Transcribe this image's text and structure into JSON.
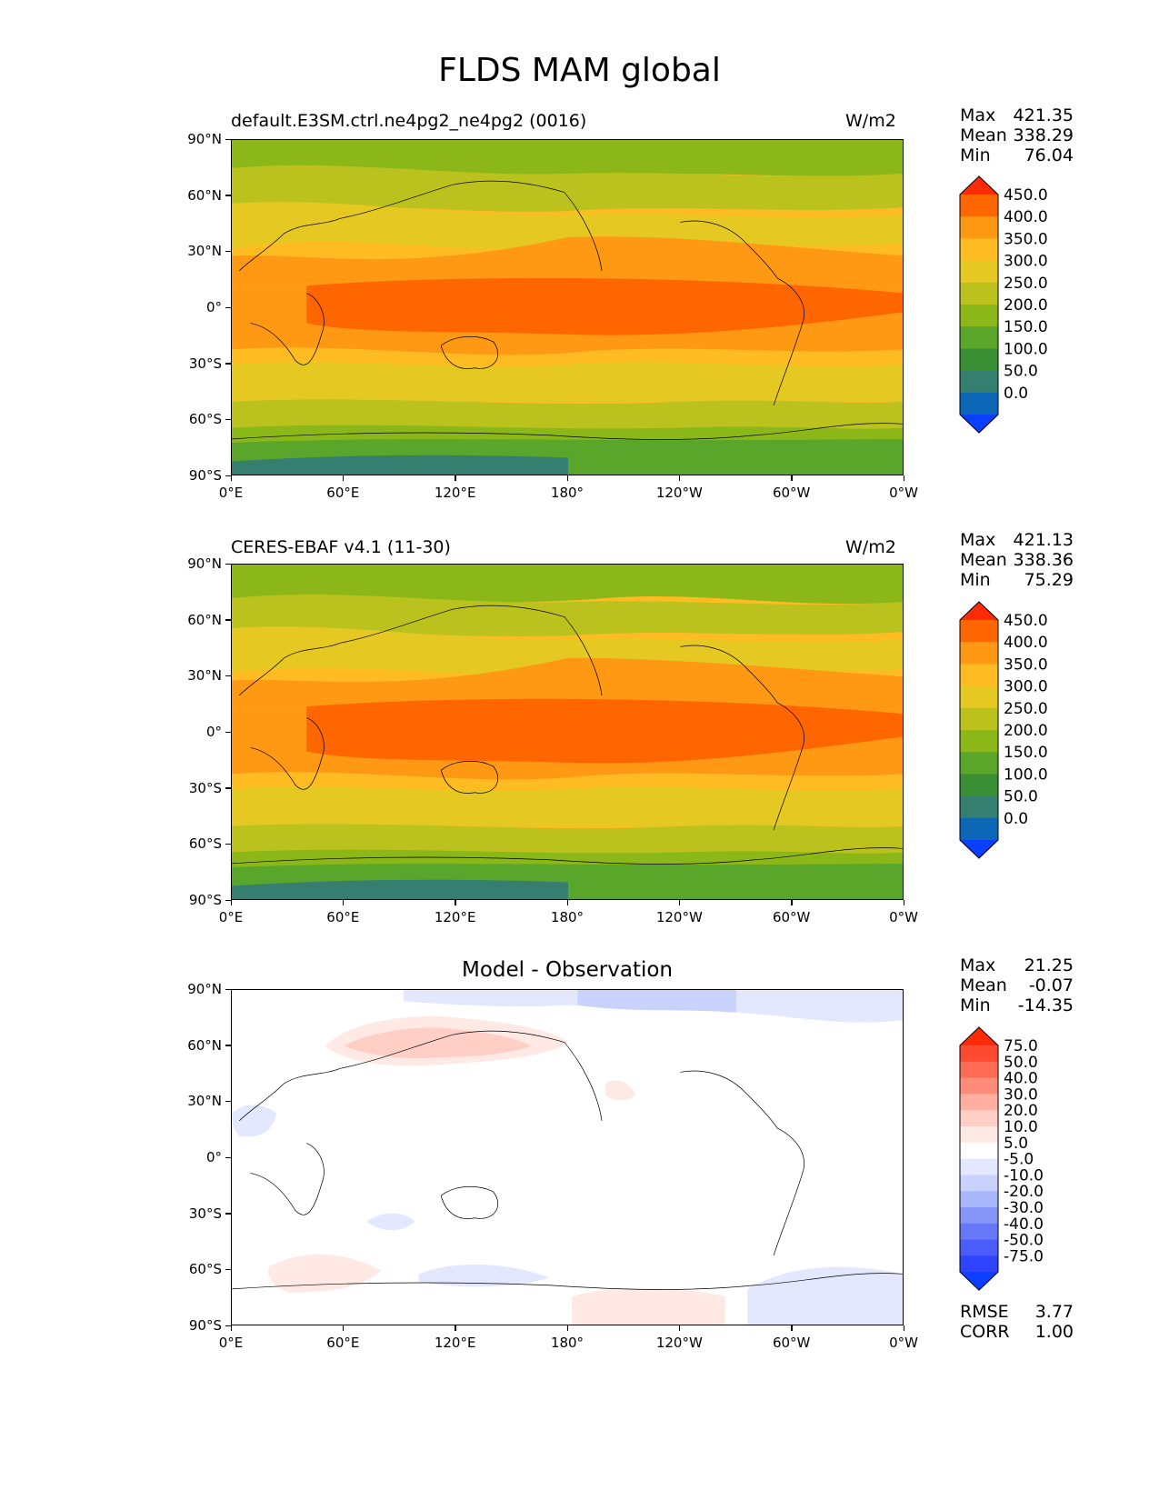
{
  "title": "FLDS MAM global",
  "lat_labels": [
    "90°N",
    "60°N",
    "30°N",
    "0°",
    "30°S",
    "60°S",
    "90°S"
  ],
  "lon_labels": [
    "0°E",
    "60°E",
    "120°E",
    "180°",
    "120°W",
    "60°W",
    "0°W"
  ],
  "panels": [
    {
      "title_left": "default.E3SM.ctrl.ne4pg2_ne4pg2 (0016)",
      "units": "W/m2",
      "stats": [
        {
          "label": "Max",
          "value": "421.35"
        },
        {
          "label": "Mean",
          "value": "338.29"
        },
        {
          "label": "Min",
          "value": "76.04"
        }
      ],
      "colorbar_levels": [
        "450.0",
        "400.0",
        "350.0",
        "300.0",
        "250.0",
        "200.0",
        "150.0",
        "100.0",
        "50.0",
        "0.0"
      ],
      "colorbar_colors": [
        "#ff2a08",
        "#ff6600",
        "#ff9914",
        "#ffbb22",
        "#e6c823",
        "#bbc21e",
        "#8cb718",
        "#5aa62a",
        "#3a8f35",
        "#347f70",
        "#0c67b7",
        "#0a3fff"
      ]
    },
    {
      "title_left": "CERES-EBAF v4.1 (11-30)",
      "units": "W/m2",
      "stats": [
        {
          "label": "Max",
          "value": "421.13"
        },
        {
          "label": "Mean",
          "value": "338.36"
        },
        {
          "label": "Min",
          "value": "75.29"
        }
      ],
      "colorbar_levels": [
        "450.0",
        "400.0",
        "350.0",
        "300.0",
        "250.0",
        "200.0",
        "150.0",
        "100.0",
        "50.0",
        "0.0"
      ],
      "colorbar_colors": [
        "#ff2a08",
        "#ff6600",
        "#ff9914",
        "#ffbb22",
        "#e6c823",
        "#bbc21e",
        "#8cb718",
        "#5aa62a",
        "#3a8f35",
        "#347f70",
        "#0c67b7",
        "#0a3fff"
      ]
    },
    {
      "title_center": "Model - Observation",
      "stats": [
        {
          "label": "Max",
          "value": "21.25"
        },
        {
          "label": "Mean",
          "value": "-0.07"
        },
        {
          "label": "Min",
          "value": "-14.35"
        }
      ],
      "colorbar_levels": [
        "75.0",
        "50.0",
        "40.0",
        "30.0",
        "20.0",
        "10.0",
        "5.0",
        "-5.0",
        "-10.0",
        "-20.0",
        "-30.0",
        "-40.0",
        "-50.0",
        "-75.0"
      ],
      "colorbar_colors": [
        "#ff2a08",
        "#ff4a32",
        "#ff6b55",
        "#ff8c78",
        "#ffaea0",
        "#ffcfc6",
        "#ffe9e5",
        "#ffffff",
        "#e4e8ff",
        "#c9d2fd",
        "#a8b6fb",
        "#8797f9",
        "#6678f8",
        "#4a5cfb",
        "#2f44fe",
        "#0a3fff"
      ],
      "rmse": {
        "label": "RMSE",
        "value": "3.77"
      },
      "corr": {
        "label": "CORR",
        "value": "1.00"
      }
    }
  ],
  "colors": {
    "band_warm": "#ff6600",
    "band_orange": "#ff9914",
    "band_amber": "#ffbb22",
    "band_yellow": "#e6c823",
    "band_olive": "#bbc21e",
    "band_green": "#8cb718",
    "band_darkgreen": "#5aa62a",
    "band_teal": "#347f70",
    "diff_red": "#ffb7ae",
    "diff_blue": "#cdd6fd"
  }
}
